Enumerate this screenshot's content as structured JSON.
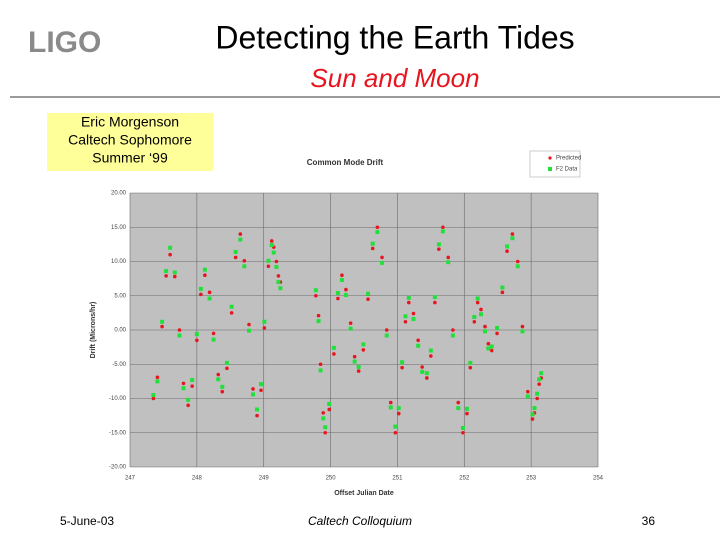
{
  "slide": {
    "logo": "LIGO",
    "title": "Detecting the Earth Tides",
    "subtitle": "Sun and Moon",
    "author": [
      "Eric Morgenson",
      "Caltech Sophomore",
      "Summer ‘99"
    ],
    "footer_left": "5-June-03",
    "footer_center": "Caltech Colloquium",
    "footer_right": "36"
  },
  "chart_data": {
    "type": "scatter",
    "title": "Common Mode Drift",
    "x_label": "Offset Julian Date",
    "y_label": "Drift (Microns/hr)",
    "xlim": [
      247,
      254
    ],
    "xticks": [
      247,
      248,
      249,
      250,
      251,
      252,
      253,
      254
    ],
    "ylim": [
      -20,
      20
    ],
    "yticks": [
      {
        "value": -20,
        "label": "-20.00"
      },
      {
        "value": -15,
        "label": "-15.00"
      },
      {
        "value": -10,
        "label": "-10.00"
      },
      {
        "value": -5,
        "label": "-5.00"
      },
      {
        "value": 0,
        "label": "0.00"
      },
      {
        "value": 5,
        "label": "5.00"
      },
      {
        "value": 10,
        "label": "10.00"
      },
      {
        "value": 15,
        "label": "15.00"
      },
      {
        "value": 20,
        "label": "20.00"
      }
    ],
    "grid": true,
    "legend": "top-right",
    "x": [
      247.35,
      247.41,
      247.48,
      247.54,
      247.6,
      247.67,
      247.74,
      247.8,
      247.87,
      247.93,
      248,
      248.06,
      248.12,
      248.19,
      248.25,
      248.32,
      248.38,
      248.45,
      248.52,
      248.58,
      248.65,
      248.71,
      248.78,
      248.84,
      248.9,
      248.96,
      249.01,
      249.07,
      249.12,
      249.15,
      249.19,
      249.22,
      249.25,
      249.78,
      249.82,
      249.85,
      249.89,
      249.92,
      249.98,
      250.05,
      250.11,
      250.17,
      250.23,
      250.3,
      250.36,
      250.42,
      250.49,
      250.56,
      250.63,
      250.7,
      250.77,
      250.84,
      250.9,
      250.97,
      251.02,
      251.07,
      251.12,
      251.17,
      251.24,
      251.31,
      251.37,
      251.44,
      251.5,
      251.56,
      251.62,
      251.68,
      251.76,
      251.83,
      251.91,
      251.98,
      252.04,
      252.09,
      252.15,
      252.2,
      252.25,
      252.31,
      252.36,
      252.41,
      252.49,
      252.57,
      252.64,
      252.72,
      252.8,
      252.87,
      252.95,
      253.02,
      253.05,
      253.09,
      253.12,
      253.15
    ],
    "series": [
      {
        "name": "Predicted",
        "color": "#e8141e",
        "values": [
          -10,
          -6.9,
          0.5,
          7.9,
          11,
          7.8,
          0,
          -7.8,
          -11,
          -8.2,
          -1.5,
          5.2,
          8,
          5.5,
          -0.5,
          -6.5,
          -9,
          -5.6,
          2.5,
          10.6,
          14,
          10.1,
          0.8,
          -8.6,
          -12.5,
          -8.8,
          0.3,
          9.3,
          13,
          12.1,
          10,
          7.9,
          7,
          5,
          2.1,
          -5,
          -12.1,
          -15,
          -11.6,
          -3.5,
          4.6,
          8,
          5.9,
          1,
          -3.9,
          -6,
          -2.9,
          4.5,
          11.9,
          15,
          10.6,
          0,
          -10.6,
          -15,
          -12.2,
          -5.5,
          1.2,
          4,
          2.4,
          -1.5,
          -5.4,
          -7,
          -3.8,
          4,
          11.8,
          15,
          10.6,
          0,
          -10.6,
          -15,
          -12.2,
          -5.5,
          1.2,
          4,
          3,
          0.5,
          -2,
          -3,
          -0.5,
          5.5,
          11.5,
          14,
          10,
          0.5,
          -9,
          -13,
          -12.1,
          -10,
          -7.9,
          -7
        ]
      },
      {
        "name": "F2 Data",
        "color": "#22e03a",
        "values": [
          -9.5,
          -7.5,
          1.2,
          8.6,
          12,
          8.4,
          -0.8,
          -8.5,
          -10.2,
          -7.3,
          -0.6,
          6,
          8.8,
          4.6,
          -1.4,
          -7.2,
          -8.3,
          -4.8,
          3.4,
          11.4,
          13.2,
          9.3,
          -0.1,
          -9.4,
          -11.6,
          -7.9,
          1.2,
          10.1,
          12.4,
          11.3,
          9.2,
          7,
          6.1,
          5.8,
          1.3,
          -5.9,
          -12.9,
          -14.2,
          -10.8,
          -2.6,
          5.4,
          7.3,
          5.1,
          0.2,
          -4.6,
          -5.4,
          -2.1,
          5.3,
          12.6,
          14.3,
          9.8,
          -0.8,
          -11.3,
          -14.1,
          -11.4,
          -4.7,
          2,
          4.7,
          1.6,
          -2.3,
          -6.1,
          -6.3,
          -3,
          4.8,
          12.5,
          14.4,
          9.9,
          -0.8,
          -11.4,
          -14.3,
          -11.5,
          -4.8,
          1.9,
          4.6,
          2.3,
          -0.2,
          -2.7,
          -2.4,
          0.3,
          6.2,
          12.2,
          13.4,
          9.3,
          -0.2,
          -9.7,
          -12.3,
          -11.4,
          -9.3,
          -7.2,
          -6.3
        ]
      }
    ]
  }
}
